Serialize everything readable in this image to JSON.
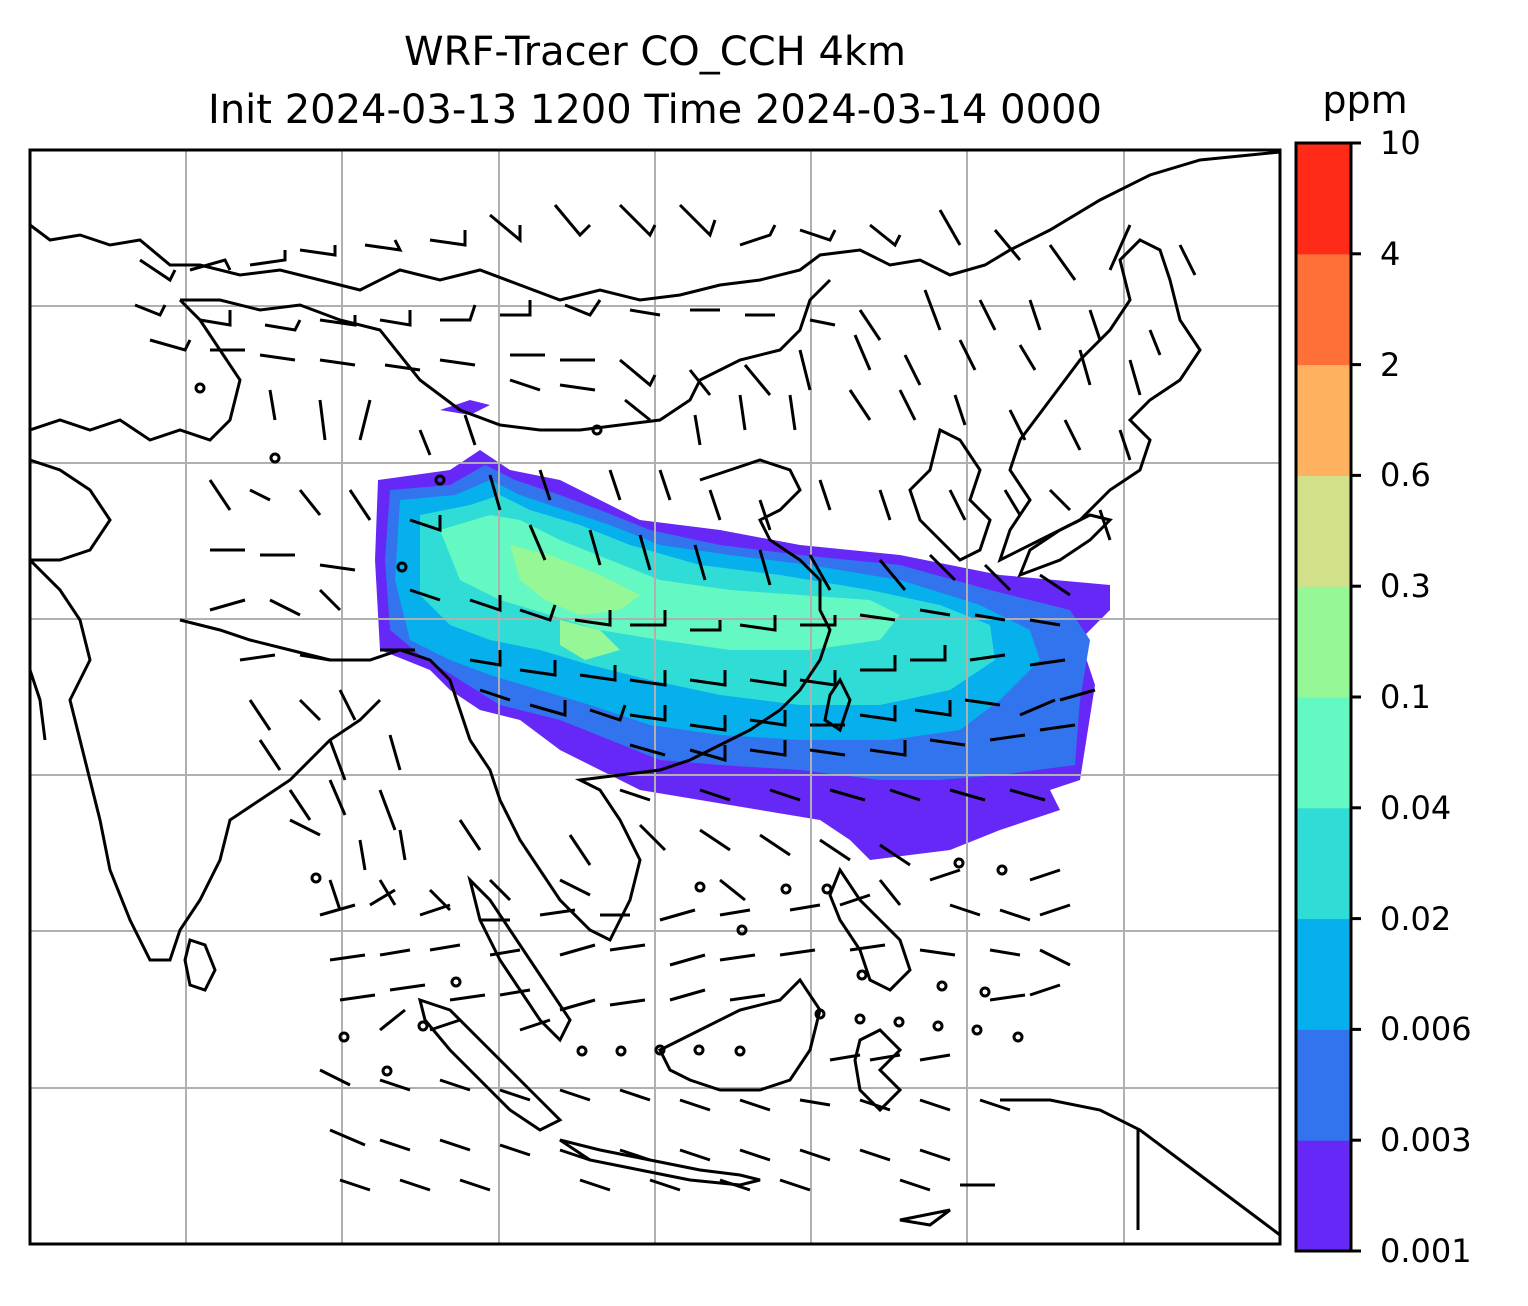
{
  "title": {
    "line1": "WRF-Tracer CO_CCH 4km",
    "line2": "Init 2024-03-13 1200 Time 2024-03-14 0000"
  },
  "colorbar": {
    "unit": "ppm",
    "levels": [
      "0.001",
      "0.003",
      "0.006",
      "0.02",
      "0.04",
      "0.1",
      "0.3",
      "0.6",
      "2",
      "4",
      "10"
    ],
    "colors": [
      "#6528f7",
      "#3273ee",
      "#05b0ec",
      "#30dcd6",
      "#64f8c2",
      "#96f796",
      "#d3e08a",
      "#feb15f",
      "#fe7038",
      "#ff2a18"
    ]
  },
  "map": {
    "gridline_color": "#b0b0b0",
    "coastline_color": "#000000",
    "wind_barbs": "black",
    "gridlines": true
  }
}
